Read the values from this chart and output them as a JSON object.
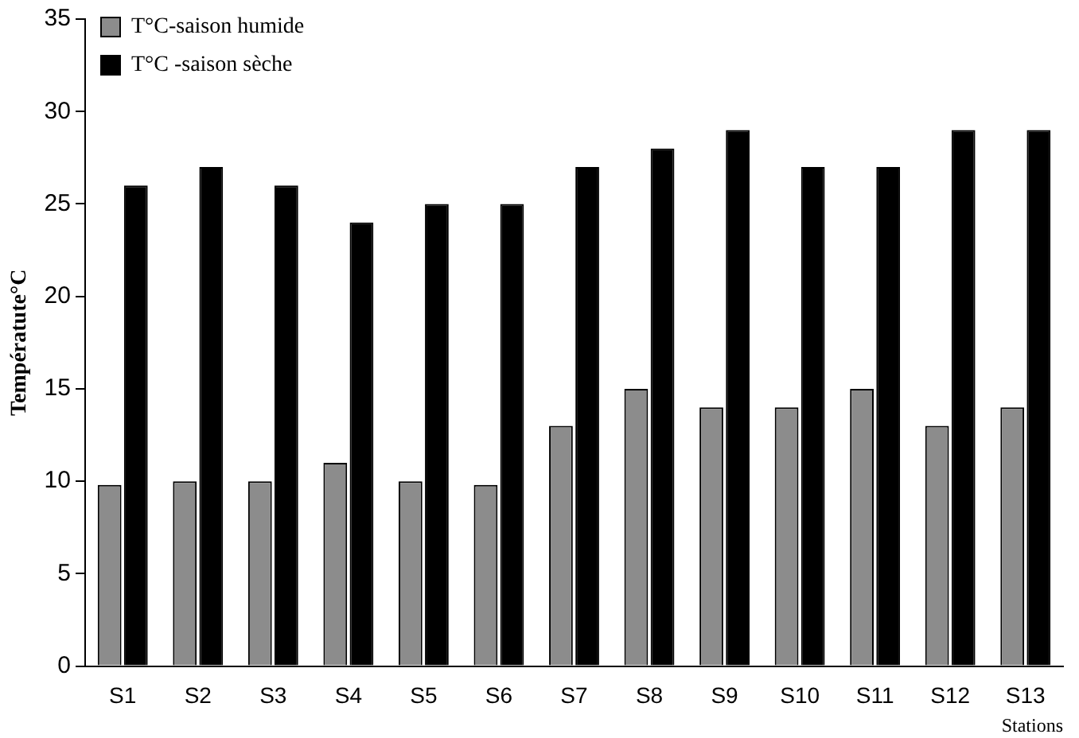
{
  "chart_data": {
    "type": "bar",
    "ylabel": "Températute°C",
    "xlabel": "Stations",
    "categories": [
      "S1",
      "S2",
      "S3",
      "S4",
      "S5",
      "S6",
      "S7",
      "S8",
      "S9",
      "S10",
      "S11",
      "S12",
      "S13"
    ],
    "series": [
      {
        "name": "T°C-saison humide",
        "color": "#8c8c8c",
        "values": [
          9.8,
          10,
          10,
          11,
          10,
          9.8,
          13,
          15,
          14,
          14,
          15,
          13,
          14
        ]
      },
      {
        "name": "T°C -saison sèche",
        "color": "#000000",
        "values": [
          26,
          27,
          26,
          24,
          25,
          25,
          27,
          28,
          29,
          27,
          27,
          29,
          29
        ]
      }
    ],
    "ylim": [
      0,
      35
    ],
    "yticks": [
      0,
      5,
      10,
      15,
      20,
      25,
      30,
      35
    ],
    "grid": false,
    "legend": "top left"
  }
}
